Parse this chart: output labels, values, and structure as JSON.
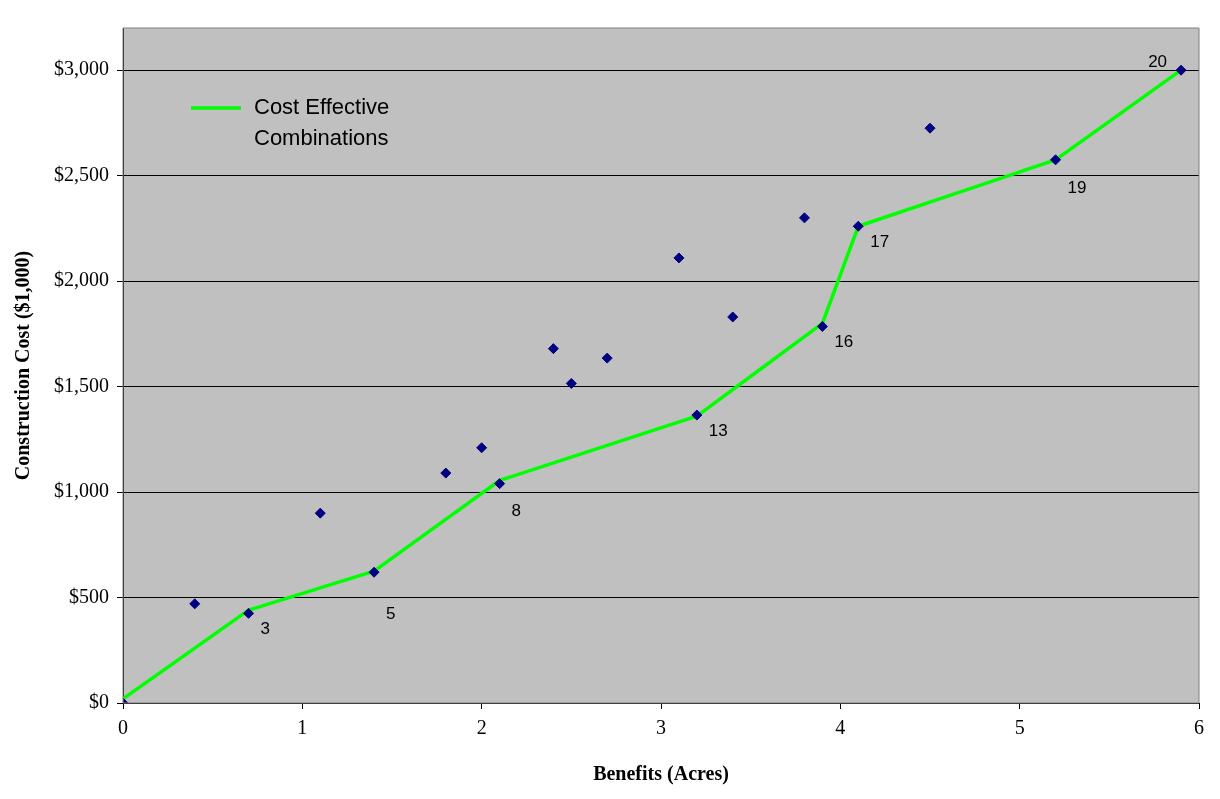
{
  "chart_data": {
    "type": "scatter",
    "xlabel": "Benefits (Acres)",
    "ylabel": "Construction Cost ($1,000)",
    "xlim": [
      0,
      6
    ],
    "xticks": [
      0,
      1,
      2,
      3,
      4,
      5,
      6
    ],
    "ylim": [
      0,
      3200
    ],
    "yticks": [
      {
        "value": 0,
        "label": "$0"
      },
      {
        "value": 500,
        "label": "$500"
      },
      {
        "value": 1000,
        "label": "$1,000"
      },
      {
        "value": 1500,
        "label": "$1,500"
      },
      {
        "value": 2000,
        "label": "$2,000"
      },
      {
        "value": 2500,
        "label": "$2,500"
      },
      {
        "value": 3000,
        "label": "$3,000"
      }
    ],
    "grid": "y",
    "legend": "top left",
    "series": [
      {
        "type": "scatter",
        "color": "#000080",
        "marker": "diamond",
        "x": [
          0,
          0.4,
          0.7,
          1.1,
          1.4,
          1.8,
          2.0,
          2.1,
          2.4,
          2.5,
          2.7,
          3.1,
          3.2,
          3.4,
          3.8,
          3.9,
          4.1,
          4.5,
          5.2,
          5.9
        ],
        "values": [
          0,
          470,
          425,
          900,
          620,
          1090,
          1210,
          1040,
          1680,
          1515,
          1635,
          2110,
          1365,
          1830,
          2300,
          1785,
          2260,
          2725,
          2575,
          3000
        ]
      },
      {
        "type": "line",
        "name": "Cost Effective Combinations",
        "color": "#00ff00",
        "marker": "none",
        "line_style": "solid",
        "x": [
          0,
          0.7,
          1.4,
          2.1,
          3.2,
          3.9,
          4.1,
          5.2,
          5.9
        ],
        "values": [
          20,
          440,
          625,
          1055,
          1360,
          1800,
          2260,
          2575,
          3000
        ]
      }
    ],
    "annotations": [
      {
        "text": "3",
        "x": 0.7,
        "y": 425
      },
      {
        "text": "5",
        "x": 1.4,
        "y": 620
      },
      {
        "text": "8",
        "x": 2.1,
        "y": 1040
      },
      {
        "text": "13",
        "x": 3.2,
        "y": 1365
      },
      {
        "text": "16",
        "x": 3.9,
        "y": 1785
      },
      {
        "text": "17",
        "x": 4.1,
        "y": 2260
      },
      {
        "text": "19",
        "x": 5.2,
        "y": 2575
      },
      {
        "text": "20",
        "x": 5.9,
        "y": 3000
      }
    ]
  }
}
